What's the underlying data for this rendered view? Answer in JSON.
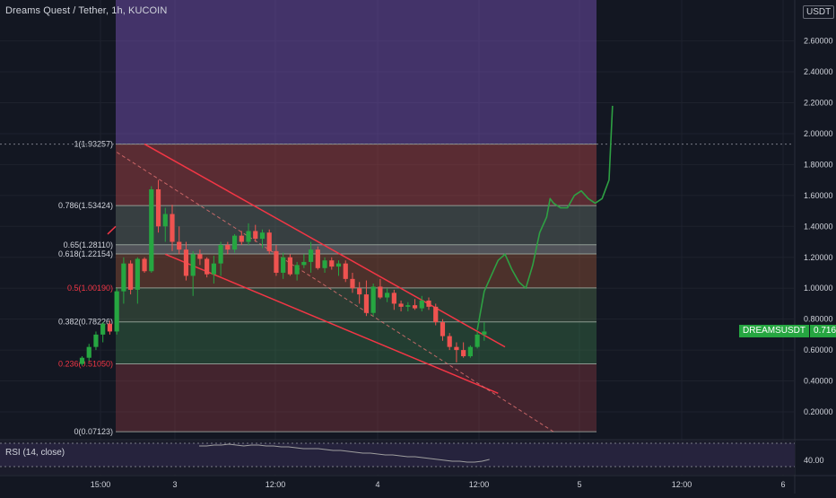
{
  "header": {
    "title": "Dreams Quest / Tether, 1h, KUCOIN",
    "currency_badge": "USDT"
  },
  "price_tag": {
    "symbol": "DREAMSUSDT",
    "value": "0.71694"
  },
  "indicator": {
    "label": "RSI (14, close)",
    "axis_value": "40.00"
  },
  "colors": {
    "background": "#131722",
    "up_candle": "#26a641",
    "down_candle": "#ef5350",
    "channel_line": "#f23645",
    "projection": "#2ea043",
    "fib_top_band": "#7e57c2"
  },
  "chart_data": {
    "type": "candlestick",
    "title": "Dreams Quest / Tether, 1h, KUCOIN",
    "ylim": [
      0.07,
      2.86
    ],
    "y_scale": "linear",
    "y_ticks": [
      "0.20000",
      "0.40000",
      "0.60000",
      "0.80000",
      "1.00000",
      "1.20000",
      "1.40000",
      "1.60000",
      "1.80000",
      "2.00000",
      "2.20000",
      "2.40000",
      "2.60000"
    ],
    "x_ticks": [
      "15:00",
      "3",
      "12:00",
      "4",
      "12:00",
      "5",
      "12:00",
      "6"
    ],
    "fib_levels": [
      {
        "label": "1(1.93257)",
        "ratio": 1,
        "price": 1.93257,
        "label_color": "#d1d4dc"
      },
      {
        "label": "0.786(1.53424)",
        "ratio": 0.786,
        "price": 1.53424,
        "label_color": "#d1d4dc"
      },
      {
        "label": "0.65(1.28110)",
        "ratio": 0.65,
        "price": 1.2811,
        "label_color": "#d1d4dc"
      },
      {
        "label": "0.618(1.22154)",
        "ratio": 0.618,
        "price": 1.22154,
        "label_color": "#d1d4dc"
      },
      {
        "label": "0.5(1.00190)",
        "ratio": 0.5,
        "price": 1.0019,
        "label_color": "#f23645"
      },
      {
        "label": "0.382(0.78226)",
        "ratio": 0.382,
        "price": 0.78226,
        "label_color": "#d1d4dc"
      },
      {
        "label": "0.236(0.51050)",
        "ratio": 0.236,
        "price": 0.5105,
        "label_color": "#f23645"
      },
      {
        "label": "0(0.07123)",
        "ratio": 0,
        "price": 0.07123,
        "label_color": "#d1d4dc"
      }
    ],
    "candles": [
      {
        "o": 0.51,
        "h": 0.56,
        "l": 0.5,
        "c": 0.55
      },
      {
        "o": 0.55,
        "h": 0.64,
        "l": 0.53,
        "c": 0.62
      },
      {
        "o": 0.62,
        "h": 0.72,
        "l": 0.6,
        "c": 0.7
      },
      {
        "o": 0.7,
        "h": 0.78,
        "l": 0.65,
        "c": 0.77
      },
      {
        "o": 0.77,
        "h": 0.79,
        "l": 0.7,
        "c": 0.72
      },
      {
        "o": 0.72,
        "h": 1.0,
        "l": 0.7,
        "c": 0.98
      },
      {
        "o": 0.98,
        "h": 1.2,
        "l": 0.9,
        "c": 1.16
      },
      {
        "o": 1.16,
        "h": 1.18,
        "l": 0.96,
        "c": 0.99
      },
      {
        "o": 0.99,
        "h": 1.2,
        "l": 0.9,
        "c": 1.19
      },
      {
        "o": 1.19,
        "h": 1.2,
        "l": 1.1,
        "c": 1.11
      },
      {
        "o": 1.11,
        "h": 1.66,
        "l": 1.1,
        "c": 1.64
      },
      {
        "o": 1.64,
        "h": 1.7,
        "l": 1.36,
        "c": 1.4
      },
      {
        "o": 1.4,
        "h": 1.52,
        "l": 1.3,
        "c": 1.48
      },
      {
        "o": 1.48,
        "h": 1.54,
        "l": 1.24,
        "c": 1.3
      },
      {
        "o": 1.3,
        "h": 1.4,
        "l": 1.22,
        "c": 1.25
      },
      {
        "o": 1.25,
        "h": 1.3,
        "l": 1.05,
        "c": 1.08
      },
      {
        "o": 1.08,
        "h": 1.24,
        "l": 0.95,
        "c": 1.22
      },
      {
        "o": 1.22,
        "h": 1.25,
        "l": 1.15,
        "c": 1.19
      },
      {
        "o": 1.19,
        "h": 1.2,
        "l": 1.07,
        "c": 1.09
      },
      {
        "o": 1.09,
        "h": 1.21,
        "l": 1.03,
        "c": 1.16
      },
      {
        "o": 1.16,
        "h": 1.3,
        "l": 1.08,
        "c": 1.28
      },
      {
        "o": 1.28,
        "h": 1.3,
        "l": 1.22,
        "c": 1.25
      },
      {
        "o": 1.25,
        "h": 1.35,
        "l": 1.23,
        "c": 1.34
      },
      {
        "o": 1.34,
        "h": 1.37,
        "l": 1.28,
        "c": 1.3
      },
      {
        "o": 1.3,
        "h": 1.42,
        "l": 1.28,
        "c": 1.37
      },
      {
        "o": 1.37,
        "h": 1.41,
        "l": 1.3,
        "c": 1.32
      },
      {
        "o": 1.32,
        "h": 1.38,
        "l": 1.26,
        "c": 1.36
      },
      {
        "o": 1.36,
        "h": 1.38,
        "l": 1.22,
        "c": 1.24
      },
      {
        "o": 1.24,
        "h": 1.28,
        "l": 1.08,
        "c": 1.1
      },
      {
        "o": 1.1,
        "h": 1.23,
        "l": 1.06,
        "c": 1.2
      },
      {
        "o": 1.2,
        "h": 1.22,
        "l": 1.08,
        "c": 1.09
      },
      {
        "o": 1.09,
        "h": 1.17,
        "l": 1.05,
        "c": 1.15
      },
      {
        "o": 1.15,
        "h": 1.22,
        "l": 1.13,
        "c": 1.17
      },
      {
        "o": 1.17,
        "h": 1.3,
        "l": 1.1,
        "c": 1.25
      },
      {
        "o": 1.25,
        "h": 1.27,
        "l": 1.12,
        "c": 1.13
      },
      {
        "o": 1.13,
        "h": 1.2,
        "l": 1.1,
        "c": 1.18
      },
      {
        "o": 1.18,
        "h": 1.2,
        "l": 1.12,
        "c": 1.14
      },
      {
        "o": 1.14,
        "h": 1.18,
        "l": 1.08,
        "c": 1.16
      },
      {
        "o": 1.16,
        "h": 1.18,
        "l": 1.04,
        "c": 1.06
      },
      {
        "o": 1.06,
        "h": 1.1,
        "l": 0.97,
        "c": 1.0
      },
      {
        "o": 1.0,
        "h": 1.04,
        "l": 0.9,
        "c": 0.96
      },
      {
        "o": 0.96,
        "h": 1.05,
        "l": 0.82,
        "c": 0.84
      },
      {
        "o": 0.84,
        "h": 1.03,
        "l": 0.82,
        "c": 1.01
      },
      {
        "o": 1.01,
        "h": 1.06,
        "l": 0.93,
        "c": 0.94
      },
      {
        "o": 0.94,
        "h": 1.0,
        "l": 0.91,
        "c": 0.97
      },
      {
        "o": 0.97,
        "h": 0.99,
        "l": 0.86,
        "c": 0.9
      },
      {
        "o": 0.9,
        "h": 0.92,
        "l": 0.85,
        "c": 0.88
      },
      {
        "o": 0.88,
        "h": 0.91,
        "l": 0.85,
        "c": 0.89
      },
      {
        "o": 0.89,
        "h": 0.93,
        "l": 0.86,
        "c": 0.87
      },
      {
        "o": 0.87,
        "h": 0.95,
        "l": 0.85,
        "c": 0.92
      },
      {
        "o": 0.92,
        "h": 0.94,
        "l": 0.86,
        "c": 0.88
      },
      {
        "o": 0.88,
        "h": 0.9,
        "l": 0.76,
        "c": 0.78
      },
      {
        "o": 0.78,
        "h": 0.8,
        "l": 0.66,
        "c": 0.69
      },
      {
        "o": 0.69,
        "h": 0.71,
        "l": 0.6,
        "c": 0.62
      },
      {
        "o": 0.62,
        "h": 0.65,
        "l": 0.52,
        "c": 0.6
      },
      {
        "o": 0.6,
        "h": 0.65,
        "l": 0.55,
        "c": 0.56
      },
      {
        "o": 0.56,
        "h": 0.63,
        "l": 0.55,
        "c": 0.62
      },
      {
        "o": 0.62,
        "h": 0.72,
        "l": 0.61,
        "c": 0.7
      },
      {
        "o": 0.7,
        "h": 0.78,
        "l": 0.66,
        "c": 0.72
      }
    ],
    "channel": {
      "upper": [
        [
          9,
          1.93257
        ],
        [
          61,
          0.62
        ]
      ],
      "lower": [
        [
          12,
          1.22
        ],
        [
          60,
          0.32
        ]
      ],
      "midline_dashed": [
        [
          5,
          1.88
        ],
        [
          68,
          0.07123
        ]
      ]
    },
    "projection_path": [
      [
        57,
        0.73
      ],
      [
        58,
        0.98
      ],
      [
        60,
        1.18
      ],
      [
        61,
        1.22
      ],
      [
        62,
        1.12
      ],
      [
        63,
        1.04
      ],
      [
        64,
        1.0
      ],
      [
        65,
        1.15
      ],
      [
        66,
        1.36
      ],
      [
        67,
        1.46
      ],
      [
        67.5,
        1.58
      ],
      [
        68,
        1.55
      ],
      [
        69,
        1.52
      ],
      [
        70,
        1.52
      ],
      [
        71,
        1.6
      ],
      [
        72,
        1.63
      ],
      [
        73,
        1.58
      ],
      [
        74,
        1.55
      ],
      [
        75,
        1.58
      ],
      [
        76,
        1.7
      ],
      [
        76.5,
        2.18
      ]
    ],
    "rsi": {
      "label": "RSI (14, close)",
      "level": 40.0
    }
  }
}
